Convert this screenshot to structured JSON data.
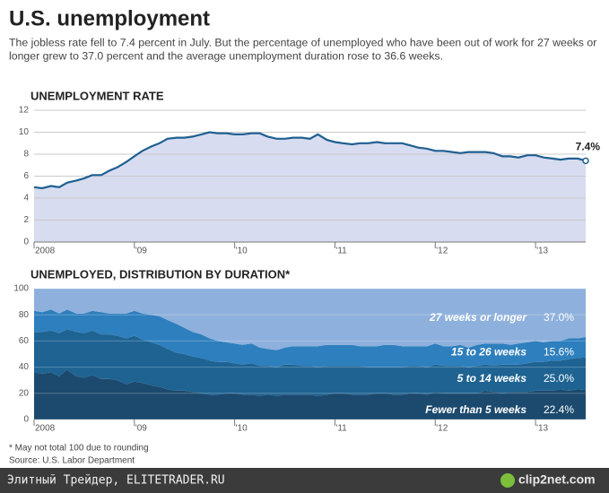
{
  "title": "U.S. unemployment",
  "subtitle": [
    "The jobless rate fell to 7.4 percent in July. But the percentage of unemployed who have been out of work for 27 weeks or",
    "longer grew to 37.0 percent and the average unemployment duration rose to 36.6 weeks."
  ],
  "notes": [
    "* May not total 100 due to rounding",
    "Source: U.S. Labor Department"
  ],
  "watermark": {
    "left": "Элитный Трейдер, ELITETRADER.RU",
    "right": "clip2net.com"
  },
  "chart_data": [
    {
      "type": "line",
      "title": "UNEMPLOYMENT RATE",
      "color": "#1f5f91",
      "fill": "#d7dcf0",
      "grid": true,
      "annotation": "7.4%",
      "x": [
        2008,
        2008.08,
        2008.17,
        2008.25,
        2008.33,
        2008.42,
        2008.5,
        2008.58,
        2008.67,
        2008.75,
        2008.83,
        2008.92,
        2009,
        2009.08,
        2009.17,
        2009.25,
        2009.33,
        2009.42,
        2009.5,
        2009.58,
        2009.67,
        2009.75,
        2009.83,
        2009.92,
        2010,
        2010.08,
        2010.17,
        2010.25,
        2010.33,
        2010.42,
        2010.5,
        2010.58,
        2010.67,
        2010.75,
        2010.83,
        2010.92,
        2011,
        2011.08,
        2011.17,
        2011.25,
        2011.33,
        2011.42,
        2011.5,
        2011.58,
        2011.67,
        2011.75,
        2011.83,
        2011.92,
        2012,
        2012.08,
        2012.17,
        2012.25,
        2012.33,
        2012.42,
        2012.5,
        2012.58,
        2012.67,
        2012.75,
        2012.83,
        2012.92,
        2013,
        2013.08,
        2013.17,
        2013.25,
        2013.33,
        2013.42,
        2013.5
      ],
      "values": [
        5.0,
        4.9,
        5.1,
        5.0,
        5.4,
        5.6,
        5.8,
        6.1,
        6.1,
        6.5,
        6.8,
        7.3,
        7.8,
        8.3,
        8.7,
        9.0,
        9.4,
        9.5,
        9.5,
        9.6,
        9.8,
        10.0,
        9.9,
        9.9,
        9.8,
        9.8,
        9.9,
        9.9,
        9.6,
        9.4,
        9.4,
        9.5,
        9.5,
        9.4,
        9.8,
        9.3,
        9.1,
        9.0,
        8.9,
        9.0,
        9.0,
        9.1,
        9.0,
        9.0,
        9.0,
        8.8,
        8.6,
        8.5,
        8.3,
        8.3,
        8.2,
        8.1,
        8.2,
        8.2,
        8.2,
        8.1,
        7.8,
        7.8,
        7.7,
        7.9,
        7.9,
        7.7,
        7.6,
        7.5,
        7.6,
        7.6,
        7.4
      ],
      "xlim": [
        2008,
        2013.5
      ],
      "xticks": [
        {
          "value": 2008,
          "label": "2008"
        },
        {
          "value": 2009,
          "label": "'09"
        },
        {
          "value": 2010,
          "label": "'10"
        },
        {
          "value": 2011,
          "label": "'11"
        },
        {
          "value": 2012,
          "label": "'12"
        },
        {
          "value": 2013,
          "label": "'13"
        }
      ],
      "ylim": [
        0,
        12
      ],
      "yticks": [
        0,
        2,
        4,
        6,
        8,
        10,
        12
      ]
    },
    {
      "type": "stacked_area",
      "title": "UNEMPLOYED, DISTRIBUTION BY DURATION*",
      "grid": true,
      "x": [
        2008,
        2008.08,
        2008.17,
        2008.25,
        2008.33,
        2008.42,
        2008.5,
        2008.58,
        2008.67,
        2008.75,
        2008.83,
        2008.92,
        2009,
        2009.08,
        2009.17,
        2009.25,
        2009.33,
        2009.42,
        2009.5,
        2009.58,
        2009.67,
        2009.75,
        2009.83,
        2009.92,
        2010,
        2010.08,
        2010.17,
        2010.25,
        2010.33,
        2010.42,
        2010.5,
        2010.58,
        2010.67,
        2010.75,
        2010.83,
        2010.92,
        2011,
        2011.08,
        2011.17,
        2011.25,
        2011.33,
        2011.42,
        2011.5,
        2011.58,
        2011.67,
        2011.75,
        2011.83,
        2011.92,
        2012,
        2012.08,
        2012.17,
        2012.25,
        2012.33,
        2012.42,
        2012.5,
        2012.58,
        2012.67,
        2012.75,
        2012.83,
        2012.92,
        2013,
        2013.08,
        2013.17,
        2013.25,
        2013.33,
        2013.42,
        2013.5
      ],
      "series": [
        {
          "name": "Fewer than 5 weeks",
          "color": "#1c4a6e",
          "end_label": "22.4%",
          "values": [
            36,
            35,
            36,
            33,
            38,
            33,
            32,
            34,
            31,
            31,
            30,
            27,
            29,
            28,
            26,
            25,
            23,
            22,
            22,
            21,
            20,
            19,
            19,
            20,
            20,
            19,
            19,
            18,
            19,
            18,
            19,
            19,
            19,
            19,
            18,
            19,
            20,
            20,
            19,
            19,
            19,
            20,
            20,
            19,
            19,
            20,
            20,
            19,
            21,
            20,
            20,
            20,
            20,
            20,
            22,
            21,
            20,
            21,
            21,
            21,
            22,
            22,
            22,
            23,
            22,
            23,
            22.4
          ]
        },
        {
          "name": "5 to 14 weeks",
          "color": "#1e6392",
          "end_label": "25.0%",
          "values": [
            31,
            32,
            32,
            33,
            31,
            34,
            34,
            34,
            34,
            34,
            34,
            35,
            35,
            33,
            33,
            32,
            31,
            29,
            28,
            27,
            27,
            26,
            25,
            24,
            23,
            23,
            24,
            23,
            22,
            22,
            23,
            23,
            22,
            22,
            22,
            22,
            21,
            21,
            22,
            22,
            21,
            20,
            20,
            21,
            21,
            21,
            21,
            21,
            21,
            21,
            21,
            21,
            20,
            21,
            20,
            20,
            22,
            21,
            21,
            22,
            22,
            22,
            23,
            22,
            24,
            24,
            25.0
          ]
        },
        {
          "name": "15 to 26 weeks",
          "color": "#2e7fbd",
          "end_label": "15.6%",
          "values": [
            16,
            15,
            16,
            15,
            15,
            14,
            15,
            15,
            17,
            16,
            17,
            19,
            19,
            20,
            21,
            22,
            22,
            22,
            20,
            19,
            18,
            17,
            16,
            15,
            15,
            15,
            15,
            14,
            13,
            13,
            13,
            14,
            15,
            15,
            16,
            16,
            16,
            16,
            16,
            15,
            16,
            16,
            17,
            17,
            16,
            15,
            15,
            16,
            16,
            15,
            15,
            16,
            15,
            16,
            16,
            17,
            16,
            15,
            16,
            16,
            16,
            15,
            15,
            15,
            16,
            15,
            15.6
          ]
        },
        {
          "name": "27 weeks or longer",
          "color": "#8eb0dc",
          "end_label": "37.0%",
          "values": [
            17,
            18,
            16,
            19,
            16,
            19,
            19,
            17,
            18,
            19,
            19,
            19,
            17,
            19,
            20,
            21,
            24,
            27,
            30,
            33,
            35,
            38,
            40,
            41,
            42,
            43,
            42,
            45,
            46,
            47,
            45,
            44,
            44,
            44,
            44,
            43,
            43,
            43,
            43,
            44,
            44,
            44,
            43,
            43,
            44,
            44,
            44,
            44,
            42,
            44,
            44,
            43,
            45,
            43,
            42,
            42,
            42,
            43,
            42,
            41,
            40,
            41,
            40,
            40,
            38,
            38,
            37.0
          ]
        }
      ],
      "xlim": [
        2008,
        2013.5
      ],
      "xticks": [
        {
          "value": 2008,
          "label": "2008"
        },
        {
          "value": 2009,
          "label": "'09"
        },
        {
          "value": 2010,
          "label": "'10"
        },
        {
          "value": 2011,
          "label": "'11"
        },
        {
          "value": 2012,
          "label": "'12"
        },
        {
          "value": 2013,
          "label": "'13"
        }
      ],
      "ylim": [
        0,
        100
      ],
      "yticks": [
        0,
        20,
        40,
        60,
        80,
        100
      ]
    }
  ]
}
